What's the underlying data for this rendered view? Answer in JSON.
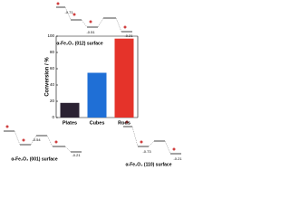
{
  "chart_data": {
    "type": "bar",
    "y_label": "Conversion / %",
    "categories": [
      "Plates",
      "Cubes",
      "Rods"
    ],
    "values": [
      18,
      55,
      97
    ],
    "colors": [
      "#2b2233",
      "#1f6fd6",
      "#e5332a"
    ],
    "ylim": [
      0,
      100
    ],
    "yticks": [
      0,
      20,
      40,
      60,
      80,
      100
    ],
    "annotations": [
      "α-Fe₂O₃ (012) surface",
      "α-Fe₂O₃ (001) surface",
      "α-Fe₂O₃ (110) surface",
      "-0.71",
      "-0.51",
      "-0.21",
      "-0.54",
      "-0.21",
      "-0.73",
      "-0.21"
    ]
  }
}
